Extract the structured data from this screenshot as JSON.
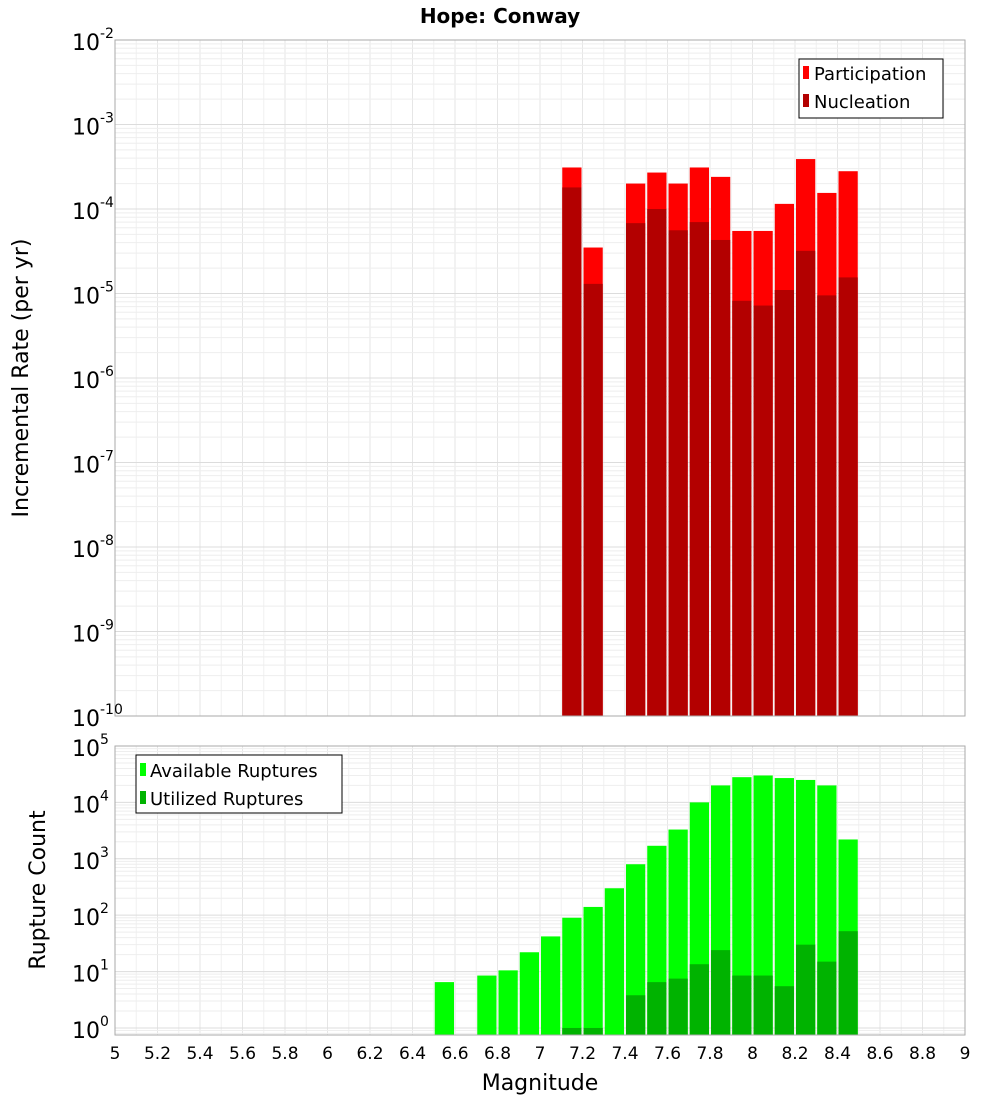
{
  "chart_data": [
    {
      "type": "bar",
      "title": "Hope: Conway",
      "xlabel": "Magnitude",
      "ylabel": "Incremental Rate (per yr)",
      "yscale": "log",
      "ylim": [
        1e-10,
        0.01
      ],
      "xlim": [
        5,
        9
      ],
      "bar_width": 0.1,
      "legend_position": "top-right",
      "series": [
        {
          "name": "Participation",
          "color": "#ff0000",
          "x": [
            7.1,
            7.2,
            7.4,
            7.5,
            7.6,
            7.7,
            7.8,
            7.9,
            8.0,
            8.1,
            8.2,
            8.3,
            8.4
          ],
          "values": [
            0.00031,
            3.5e-05,
            0.0002,
            0.00027,
            0.0002,
            0.00031,
            0.00024,
            5.5e-05,
            5.5e-05,
            0.000115,
            0.00039,
            0.000155,
            0.00028
          ]
        },
        {
          "name": "Nucleation",
          "color": "#b30000",
          "x": [
            7.1,
            7.2,
            7.4,
            7.5,
            7.6,
            7.7,
            7.8,
            7.9,
            8.0,
            8.1,
            8.2,
            8.3,
            8.4
          ],
          "values": [
            0.00018,
            1.3e-05,
            6.8e-05,
            0.0001,
            5.6e-05,
            7e-05,
            4.3e-05,
            8.2e-06,
            7.2e-06,
            1.1e-05,
            3.2e-05,
            9.5e-06,
            1.55e-05
          ]
        }
      ]
    },
    {
      "type": "bar",
      "xlabel": "Magnitude",
      "ylabel": "Rupture Count",
      "yscale": "log",
      "ylim": [
        0.75,
        100000
      ],
      "xlim": [
        5,
        9
      ],
      "bar_width": 0.1,
      "legend_position": "top-left",
      "series": [
        {
          "name": "Available Ruptures",
          "color": "#00ff00",
          "x": [
            6.5,
            6.7,
            6.8,
            6.9,
            7.0,
            7.1,
            7.2,
            7.3,
            7.4,
            7.5,
            7.6,
            7.7,
            7.8,
            7.9,
            8.0,
            8.1,
            8.2,
            8.3,
            8.4
          ],
          "values": [
            6.5,
            8.5,
            10.5,
            22,
            42,
            90,
            140,
            300,
            800,
            1700,
            3300,
            10000,
            20000,
            28000,
            30000,
            27000,
            25000,
            20000,
            2200
          ]
        },
        {
          "name": "Utilized Ruptures",
          "color": "#00b300",
          "x": [
            7.1,
            7.2,
            7.4,
            7.5,
            7.6,
            7.7,
            7.8,
            7.9,
            8.0,
            8.1,
            8.2,
            8.3,
            8.4
          ],
          "values": [
            1,
            1,
            3.8,
            6.5,
            7.5,
            13.5,
            24,
            8.5,
            8.5,
            5.5,
            30,
            15,
            52
          ]
        }
      ]
    }
  ],
  "x_ticks": [
    "5",
    "5.2",
    "5.4",
    "5.6",
    "5.8",
    "6",
    "6.2",
    "6.4",
    "6.6",
    "6.8",
    "7",
    "7.2",
    "7.4",
    "7.6",
    "7.8",
    "8",
    "8.2",
    "8.4",
    "8.6",
    "8.8",
    "9"
  ],
  "top_y_ticks": [
    {
      "base": "10",
      "exp": "-2"
    },
    {
      "base": "10",
      "exp": "-3"
    },
    {
      "base": "10",
      "exp": "-4"
    },
    {
      "base": "10",
      "exp": "-5"
    },
    {
      "base": "10",
      "exp": "-6"
    },
    {
      "base": "10",
      "exp": "-7"
    },
    {
      "base": "10",
      "exp": "-8"
    },
    {
      "base": "10",
      "exp": "-9"
    },
    {
      "base": "10",
      "exp": "-10"
    }
  ],
  "bottom_y_ticks": [
    {
      "base": "10",
      "exp": "5"
    },
    {
      "base": "10",
      "exp": "4"
    },
    {
      "base": "10",
      "exp": "3"
    },
    {
      "base": "10",
      "exp": "2"
    },
    {
      "base": "10",
      "exp": "1"
    },
    {
      "base": "10",
      "exp": "0"
    }
  ],
  "top_exponents": [
    -2,
    -3,
    -4,
    -5,
    -6,
    -7,
    -8,
    -9,
    -10
  ],
  "bottom_exponents": [
    5,
    4,
    3,
    2,
    1,
    0
  ]
}
